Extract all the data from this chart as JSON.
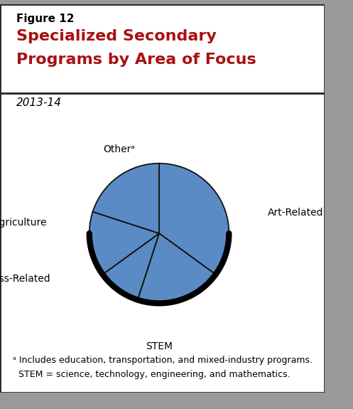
{
  "title_label": "Figure 12",
  "title_main_line1": "Specialized Secondary",
  "title_main_line2": "Programs by Area of Focus",
  "subtitle": "2013-14",
  "slices": [
    "Art-Related",
    "Otherᵃ",
    "Agriculture",
    "Business-Related",
    "STEM"
  ],
  "values": [
    35,
    20,
    10,
    15,
    20
  ],
  "slice_color": "#5b8bc4",
  "slice_edge_color": "#111111",
  "footnote_a": "ᵃ Includes education, transportation, and mixed-industry programs.",
  "footnote_stem": "  STEM = science, technology, engineering, and mathematics.",
  "title_color": "#aa1111",
  "label_color": "#000000",
  "bg_color": "#ffffff",
  "border_color": "#222222",
  "shadow_color": "#999999",
  "label_fontsize": 10,
  "footnote_fontsize": 9,
  "title_fontsize": 16,
  "subtitle_fontsize": 11,
  "fig_label_fontsize": 11
}
